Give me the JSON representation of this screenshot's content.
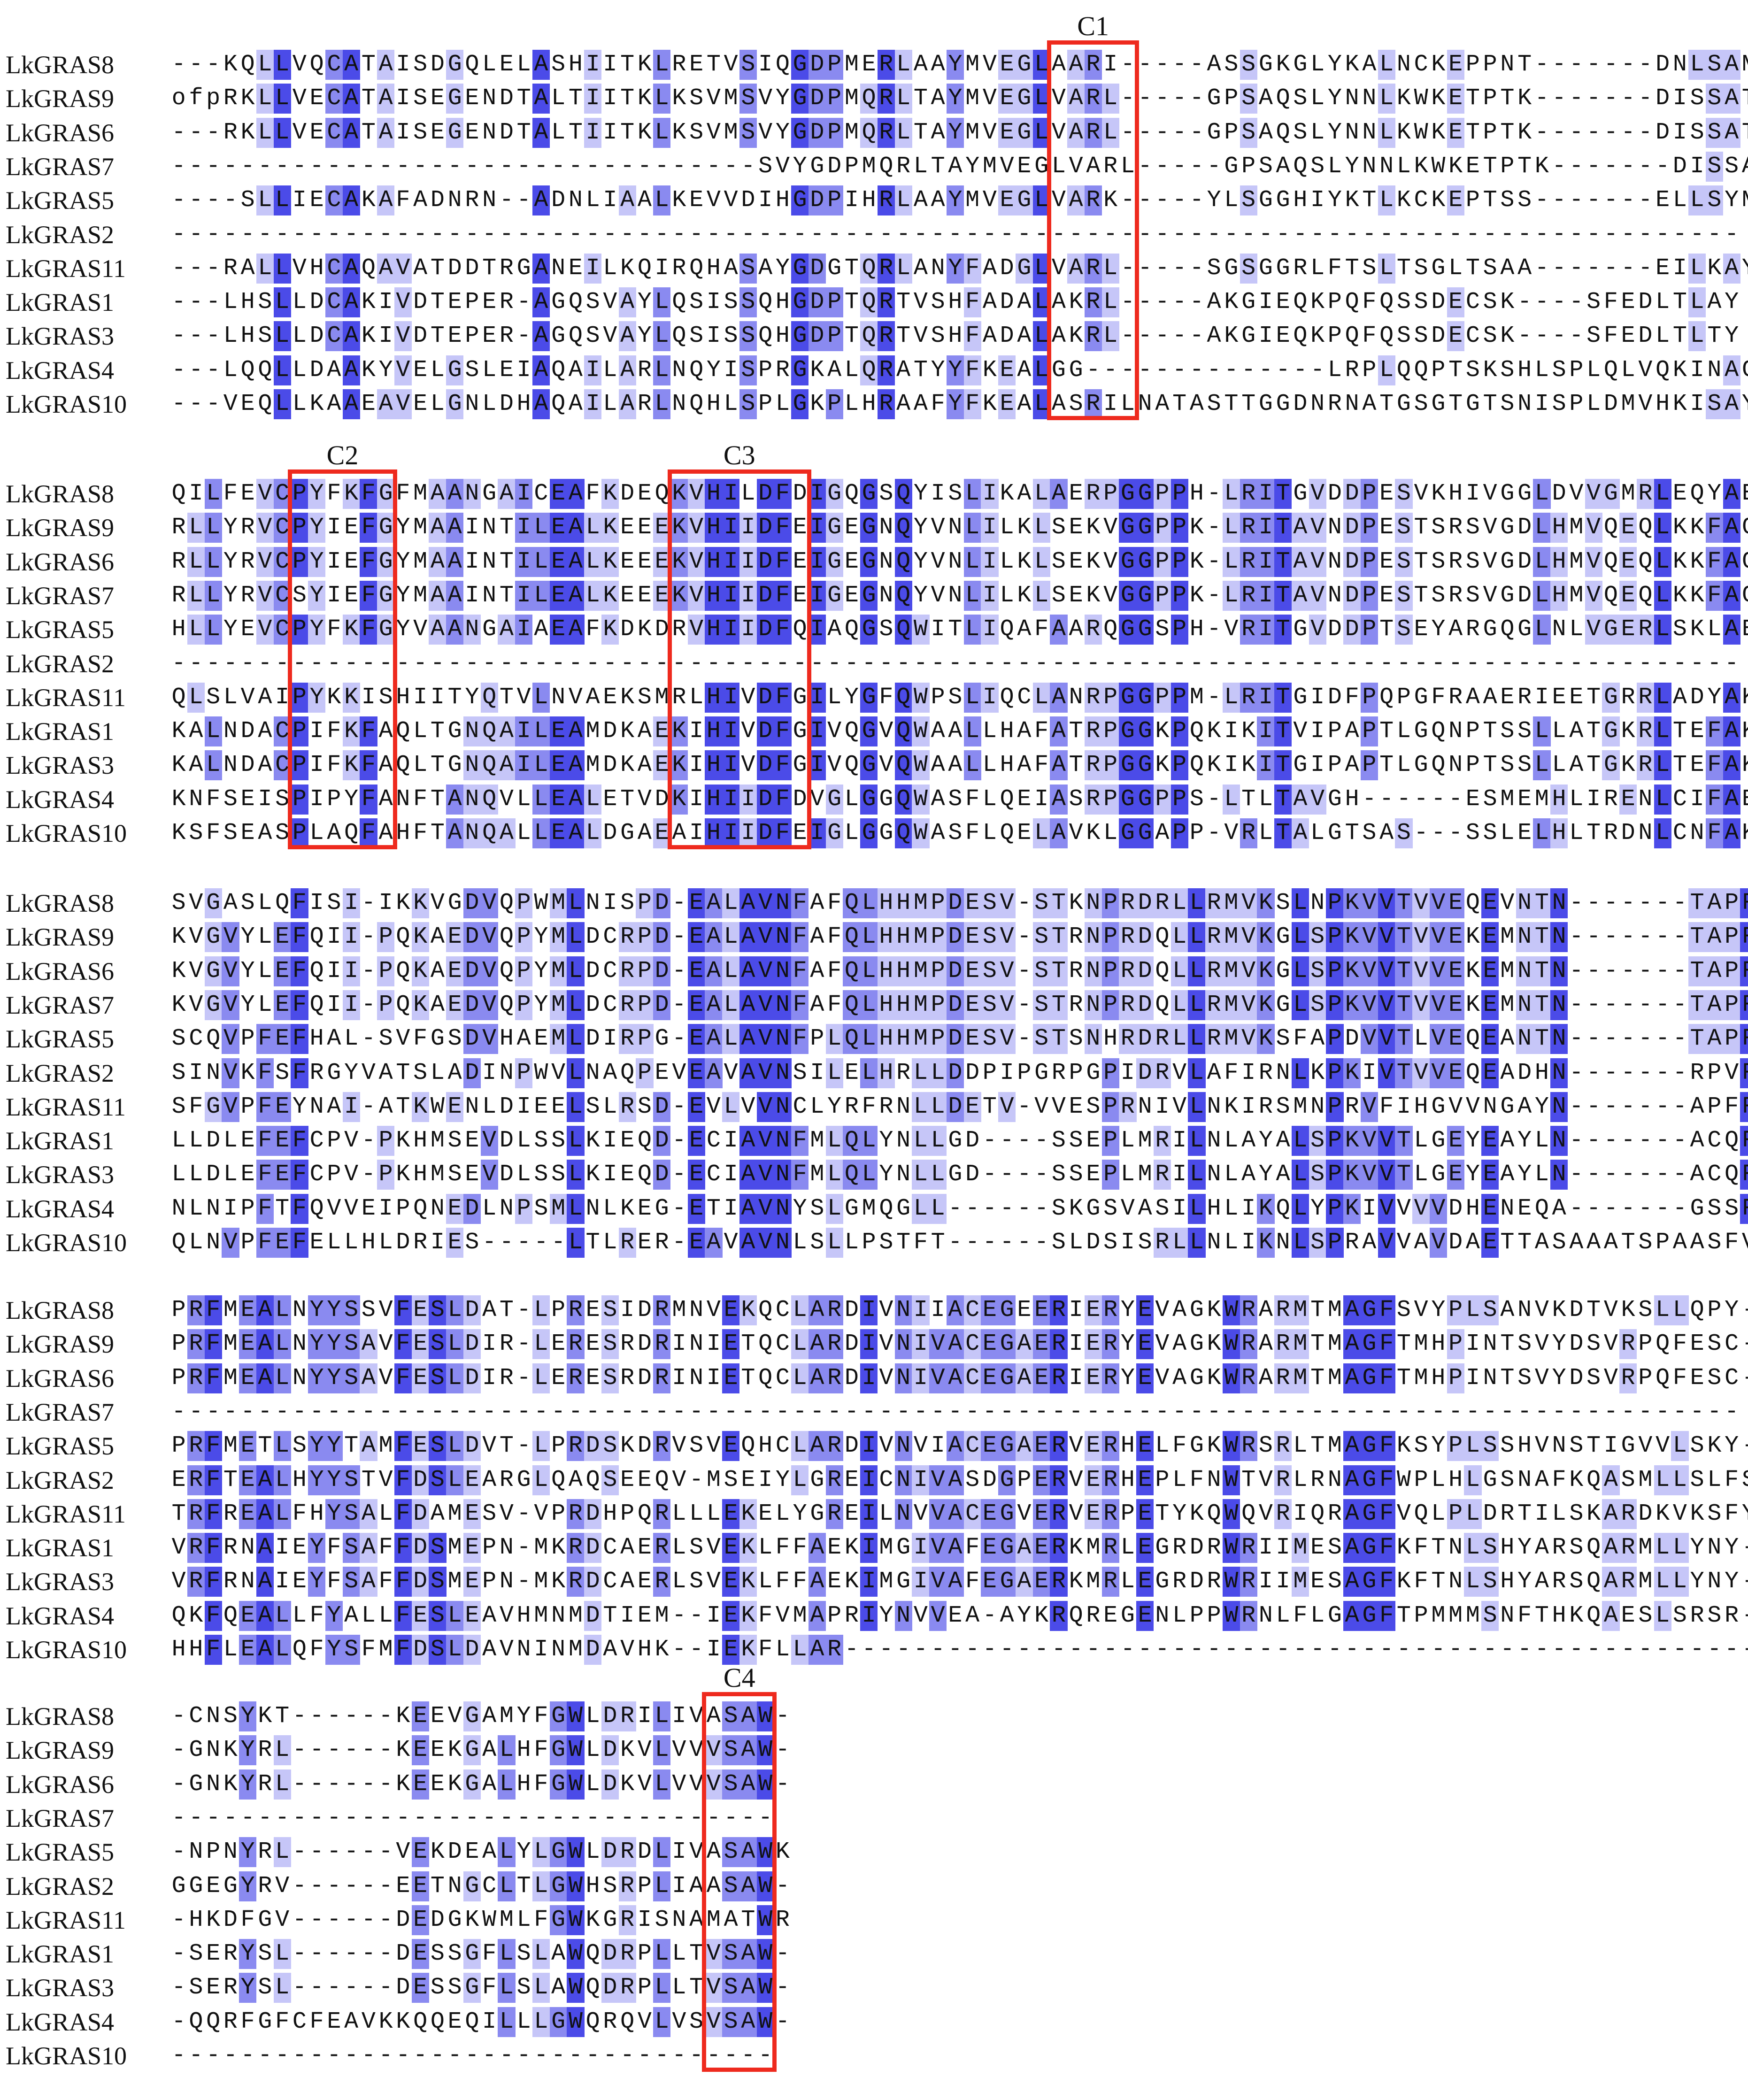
{
  "colors": {
    "conserved_strong": "#4b4be8",
    "conserved_medium": "#8a8af0",
    "conserved_light": "#c6c6f8",
    "motif_box": "#ee2a1e"
  },
  "blocks": [
    {
      "rows": [
        {
          "name": "LkGRAS8",
          "seq": "---KQLLVQCATAISDGQLELASHIITKLRETVSIQGDPMERLAAYMVEGLAARI-----ASSGKGLYKALNCKEPPNT-------DNLSAM"
        },
        {
          "name": "LkGRAS9",
          "seq": "ofpRKLLVECATAISEGENDTALTIITKLKSVMSVYGDPMQRLTAYMVEGLVARL-----GPSAQSLYNNLKWKETPTK-------DISSAT"
        },
        {
          "name": "LkGRAS6",
          "seq": "---RKLLVECATAISEGENDTALTIITKLKSVMSVYGDPMQRLTAYMVEGLVARL-----GPSAQSLYNNLKWKETPTK-------DISSAT"
        },
        {
          "name": "LkGRAS7",
          "seq": "----------------------------------SVYGDPMQRLTAYMVEGLVARL-----GPSAQSLYNNLKWKETPTK-------DISSAT"
        },
        {
          "name": "LkGRAS5",
          "seq": "----SLLIECAKAFADNRN--ADNLIAALKEVVDIHGDPIHRLAAYMVEGLVARK-----YLSGGHIYKTLKCKEPTSS-------ELLSYM"
        },
        {
          "name": "LkGRAS2",
          "seq": "-------------------------------------------------------------------------------------------"
        },
        {
          "name": "LkGRAS11",
          "seq": "---RALLVHCAQAVATDDTRGANEILKQIRQHASAYGDGTQRLANYFADGLVARL-----SGSGGRLFTSLTSGLTSAA-------EILKAY"
        },
        {
          "name": "LkGRAS1",
          "seq": "---LHSLLDCAKIVDTEPER-AGQSVAYLQSISSQHGDPTQRTVSHFADALAKRL-----AKGIEQKPQFQSSDECSK----SFEDLTLAY"
        },
        {
          "name": "LkGRAS3",
          "seq": "---LHSLLDCAKIVDTEPER-AGQSVAYLQSISSQHGDPTQRTVSHFADALAKRL-----AKGIEQKPQFQSSDECSK----SFEDLTLTY"
        },
        {
          "name": "LkGRAS4",
          "seq": "---LQQLLDAAKYVELGSLEIAQAILARLNQYISPRGKALQRATYYFKEALGG--------------LRPLQQPTSKSHLSPLQLVQKINAC"
        },
        {
          "name": "LkGRAS10",
          "seq": "---VEQLLKAAEAVELGNLDHAQAILARLNQHLSPLGKPLHRAAFYFKEALASRILNATASTTGGDNRNATGSGTGTSNISPLDMVHKISAY"
        }
      ],
      "motifs": [
        {
          "label": "C1",
          "start": 51,
          "end": 55
        }
      ]
    },
    {
      "rows": [
        {
          "name": "LkGRAS8",
          "seq": "QILFEVCPYFKFGFMAANGAICEAFKDEQKVHILDFDIGQGSQYISLIKALAERPGGPPH-LRITGVDDPESVKHIVGGLDVVGMRLEQYAE"
        },
        {
          "name": "LkGRAS9",
          "seq": "RLLYRVCPYIEFGYMAAINTILEALKEEEKVHIIDFEIGEGNQYVNLILKLSEKVGGPPK-LRITAVNDPESTSRSVGDLHMVQEQLKKFAG"
        },
        {
          "name": "LkGRAS6",
          "seq": "RLLYRVCPYIEFGYMAAINTILEALKEEEKVHIIDFEIGEGNQYVNLILKLSEKVGGPPK-LRITAVNDPESTSRSVGDLHMVQEQLKKFAG"
        },
        {
          "name": "LkGRAS7",
          "seq": "RLLYRVCSYIEFGYMAAINTILEALKEEEKVHIIDFEIGEGNQYVNLILKLSEKVGGPPK-LRITAVNDPESTSRSVGDLHMVQEQLKKFAG"
        },
        {
          "name": "LkGRAS5",
          "seq": "HLLYEVCPYFKFGYVAANGAIAEAFKDKDRVHIIDFQIAQGSQWITLIQAFAARQGGSPH-VRITGVDDPTSEYARGQGLNLVGERLSKLAE"
        },
        {
          "name": "LkGRAS2",
          "seq": "-------------------------------------------------------------------------------------------"
        },
        {
          "name": "LkGRAS11",
          "seq": "QLSLVAIPYKKISHIITYQTVLNVAEKSMRLHIVDFGILYGFQWPSLIQCLANRPGGPPM-LRITGIDFPQPGFRAAERIEETGRRLADYAK"
        },
        {
          "name": "LkGRAS1",
          "seq": "KALNDACPIFKFAQLTGNQAILEAMDKAEKIHIVDFGIVQGVQWAALLHAFATRPGGKPQKIKITVIPAPTLGQNPTSSLLATGKRLTEFAK"
        },
        {
          "name": "LkGRAS3",
          "seq": "KALNDACPIFKFAQLTGNQAILEAMDKAEKIHIVDFGIVQGVQWAALLHAFATRPGGKPQKIKITGIPAPTLGQNPTSSLLATGKRLTEFAK"
        },
        {
          "name": "LkGRAS4",
          "seq": "KNFSEISPIPYFANFTANQVLLEALETVDKIHIIDFDVGLGGQWASFLQEIASRPGGPPS-LTLTAVGH------ESMEMHLIRENLCIFAE"
        },
        {
          "name": "LkGRAS10",
          "seq": "KSFSEASPLAQFAHFTANQALLEALDGAEAIHIIDFEIGLGGQWASFLQELAVKLGGAPP-VRLTALGTSAS---SSLELHLTRDNLCNFAK"
        }
      ],
      "motifs": [
        {
          "label": "C2",
          "start": 7,
          "end": 12
        },
        {
          "label": "C3",
          "start": 29,
          "end": 36
        }
      ]
    },
    {
      "rows": [
        {
          "name": "LkGRAS8",
          "seq": "SVGASLQFISI-IKKVGDVQPWMLNISPD-EALAVNFAFQLHHMPDESV-STKNPRDRLLRMVKSLNPKVVTVVEQEVNTN-------TAPFL"
        },
        {
          "name": "LkGRAS9",
          "seq": "KVGVYLEFQII-PQKAEDVQPYMLDCRPD-EALAVNFAFQLHHMPDESV-STRNPRDQLLRMVKGLSPKVVTVVEKEMNTN-------TAPFL"
        },
        {
          "name": "LkGRAS6",
          "seq": "KVGVYLEFQII-PQKAEDVQPYMLDCRPD-EALAVNFAFQLHHMPDESV-STRNPRDQLLRMVKGLSPKVVTVVEKEMNTN-------TAPFL"
        },
        {
          "name": "LkGRAS7",
          "seq": "KVGVYLEFQII-PQKAEDVQPYMLDCRPD-EALAVNFAFQLHHMPDESV-STRNPRDQLLRMVKGLSPKVVTVVEKEMNTN-------TAPFL"
        },
        {
          "name": "LkGRAS5",
          "seq": "SCQVPFEFHAL-SVFGSDVHAEMLDIRPG-EALAVNFPLQLHHMPDESV-STSNHRDRLLRMVKSFAPDVVTLVEQEANTN-------TAPFF"
        },
        {
          "name": "LkGRAS2",
          "seq": "SINVKFSFRGYVATSLADINPWVLNAQPEVEAVAVNSILELHRLLDDPIPGRPGPIDRVLAFIRNLKPKIVTVVEQEADHN-------RPVFL"
        },
        {
          "name": "LkGRAS11",
          "seq": "SFGVPFEYNAI-ATKWENLDIEELSLRSD-EVLVVNCLYRFRNLLDETV-VVESPRNIVLNKIRSMNPRVFIHGVVNGAYN-------APFFI"
        },
        {
          "name": "LkGRAS1",
          "seq": "LLDLEFEFCPV-PKHMSEVDLSSLKIEQD-ECIAVNFMLQLYNLLGD----SSEPLMRILNLAYALSPKVVTLGEYEAYLN-------ACQFQ"
        },
        {
          "name": "LkGRAS3",
          "seq": "LLDLEFEFCPV-PKHMSEVDLSSLKIEQD-ECIAVNFMLQLYNLLGD----SSEPLMRILNLAYALSPKVVTLGEYEAYLN-------ACQFQ"
        },
        {
          "name": "LkGRAS4",
          "seq": "NLNIPFTFQVVEIPQNEDLNPSMLNLKEG-ETIAVNYSLGMQGLL------SKGSVASILHLIKQLYPKIVVVVDHENEQA-------GSSFA"
        },
        {
          "name": "LkGRAS10",
          "seq": "QLNVPFEFELLHLDRIES-----LTLRER-EAVAVNLSLLPSTFT------SLDSISRLLNLIKNLSPRAVVAVDAETTASAAATSPAASFV"
        }
      ],
      "motifs": []
    },
    {
      "rows": [
        {
          "name": "LkGRAS8",
          "seq": "PRFMEALNYYSSVFESLDAT-LPRESIDRMNVEKQCLARDIVNIIACEGEERIERYEVAGKWRARMTMAGFSVYPLSANVKDTVKSLLQPY-"
        },
        {
          "name": "LkGRAS9",
          "seq": "PRFMEALNYYSAVFESLDIR-LERESRDRINIETQCLARDIVNIVACEGAERIERYEVAGKWRARMTMAGFTMHPINTSVYDSVRPQFESC-"
        },
        {
          "name": "LkGRAS6",
          "seq": "PRFMEALNYYSAVFESLDIR-LERESRDRINIETQCLARDIVNIVACEGAERIERYEVAGKWRARMTMAGFTMHPINTSVYDSVRPQFESC-"
        },
        {
          "name": "LkGRAS7",
          "seq": "-------------------------------------------------------------------------------------------"
        },
        {
          "name": "LkGRAS5",
          "seq": "PRFMETLSYYTAMFESLDVT-LPRDSKDRVSVEQHCLARDIVNVIACEGAERVERHELFGKWRSRLTMAGFKSYPLSSHVNSTIGVVLSKY-"
        },
        {
          "name": "LkGRAS2",
          "seq": "ERFTEALHYYSTVFDSLEARGLQAQSEEQV-MSEIYLGREICNIVASDGPERVERHEPLFNWTVRLRNAGFWPLHLGSNAFKQASMLLSLFS"
        },
        {
          "name": "LkGRAS11",
          "seq": "TRFREALFHYSALFDAMESV-VPRDHPQRLLLEKELYGREILNVVACEGVERVERPETYKQWQVRIQRAGFVQLPLDRTILSKARDKVKSFY"
        },
        {
          "name": "LkGRAS1",
          "seq": "VRFRNAIEYFSAFFDSMEPN-MKRDCAERLSVEKLFFAEKIMGIVAFEGAERKMRLEGRDRWRIIMESAGFKFTNLSHYARSQARMLLYNY-"
        },
        {
          "name": "LkGRAS3",
          "seq": "VRFRNAIEYFSAFFDSMEPN-MKRDCAERLSVEKLFFAEKIMGIVAFEGAERKMRLEGRDRWRIIMESAGFKFTNLSHYARSQARMLLYNY-"
        },
        {
          "name": "LkGRAS4",
          "seq": "QKFQEALLFYALLFESLEAVHMNMDTIEM--IEKFVMAPRIYNVVEA-AYKRQREGENLPPWRNLFLGAGFTPMMMSNFTHKQAESLSRSR-"
        },
        {
          "name": "LkGRAS10",
          "seq": "HHFLEALQFYSFMFDSLDAVNINMDAVHK--IEKFLLAR--------------------------------------------------------"
        }
      ],
      "motifs": []
    },
    {
      "rows": [
        {
          "name": "LkGRAS8",
          "seq": "-CNSYKT------KEEVGAMYFGWLDRILIVASAW-"
        },
        {
          "name": "LkGRAS9",
          "seq": "-GNKYRL------KEEKGALHFGWLDKVLVVVSAW-"
        },
        {
          "name": "LkGRAS6",
          "seq": "-GNKYRL------KEEKGALHFGWLDKVLVVVSAW-"
        },
        {
          "name": "LkGRAS7",
          "seq": "-----------------------------------"
        },
        {
          "name": "LkGRAS5",
          "seq": "-NPNYRL------VEKDEALYLGWLDRDLIVASAWK"
        },
        {
          "name": "LkGRAS2",
          "seq": "GGEGYRV------EETNGCLTLGWHSRPLIAASAW-"
        },
        {
          "name": "LkGRAS11",
          "seq": "-HKDFGV------DEDGKWMLFGWKGRISNAMATWR"
        },
        {
          "name": "LkGRAS1",
          "seq": "-SERYSL------DESSGFLSLAWQDRPLLTVSAW-"
        },
        {
          "name": "LkGRAS3",
          "seq": "-SERYSL------DESSGFLSLAWQDRPLLTVSAW-"
        },
        {
          "name": "LkGRAS4",
          "seq": "-QQRFGFCFEAVKKQQEQILLLGWQRQVLVSVSAW-"
        },
        {
          "name": "LkGRAS10",
          "seq": "-----------------------------------"
        }
      ],
      "motifs": [
        {
          "label": "C4",
          "start": 31,
          "end": 34
        }
      ]
    }
  ]
}
